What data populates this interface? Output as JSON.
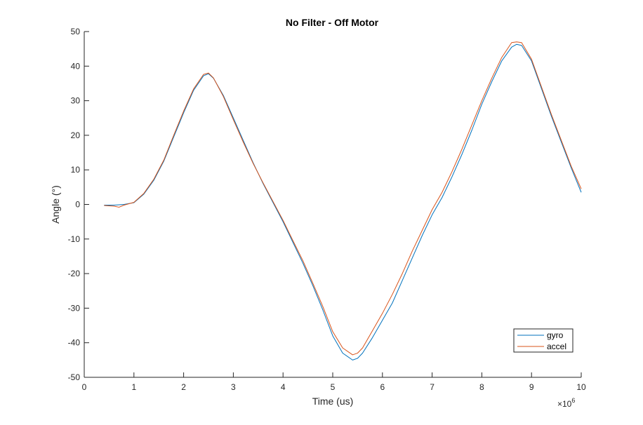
{
  "chart_data": {
    "type": "line",
    "title": "No Filter - Off Motor",
    "xlabel": "Time (us)",
    "ylabel": "Angle (°)",
    "xlim": [
      0,
      10
    ],
    "ylim": [
      -50,
      50
    ],
    "x_multiplier_label": "×10",
    "x_multiplier_exponent": "6",
    "xticks": [
      0,
      1,
      2,
      3,
      4,
      5,
      6,
      7,
      8,
      9,
      10
    ],
    "xtick_labels": [
      "0",
      "1",
      "2",
      "3",
      "4",
      "5",
      "6",
      "7",
      "8",
      "9",
      "10"
    ],
    "yticks": [
      -50,
      -40,
      -30,
      -20,
      -10,
      0,
      10,
      20,
      30,
      40,
      50
    ],
    "ytick_labels": [
      "-50",
      "-40",
      "-30",
      "-20",
      "-10",
      "0",
      "10",
      "20",
      "30",
      "40",
      "50"
    ],
    "grid": false,
    "legend_position": "bottom-right",
    "series": [
      {
        "name": "gyro",
        "color": "#0072BD",
        "x": [
          0.4,
          0.6,
          0.8,
          1.0,
          1.2,
          1.4,
          1.6,
          1.8,
          2.0,
          2.2,
          2.4,
          2.5,
          2.6,
          2.8,
          3.0,
          3.2,
          3.4,
          3.6,
          3.8,
          4.0,
          4.2,
          4.4,
          4.6,
          4.8,
          5.0,
          5.2,
          5.4,
          5.5,
          5.6,
          5.8,
          6.0,
          6.2,
          6.4,
          6.6,
          6.8,
          7.0,
          7.2,
          7.4,
          7.6,
          7.8,
          8.0,
          8.2,
          8.4,
          8.6,
          8.7,
          8.8,
          9.0,
          9.2,
          9.4,
          9.6,
          9.8,
          10.0
        ],
        "y": [
          -0.2,
          -0.2,
          0.0,
          0.5,
          3.0,
          7.0,
          12.5,
          19.5,
          26.5,
          33.0,
          37.2,
          37.8,
          36.5,
          31.5,
          25.0,
          18.5,
          12.0,
          6.0,
          0.5,
          -5.0,
          -11.0,
          -17.0,
          -23.5,
          -30.5,
          -38.0,
          -43.0,
          -45.0,
          -44.5,
          -43.0,
          -38.5,
          -33.5,
          -28.5,
          -22.0,
          -15.5,
          -9.0,
          -3.0,
          2.0,
          8.0,
          14.5,
          21.5,
          29.0,
          35.5,
          41.5,
          45.5,
          46.3,
          46.0,
          41.5,
          33.5,
          25.5,
          18.0,
          10.5,
          3.5
        ]
      },
      {
        "name": "accel",
        "color": "#D95319",
        "x": [
          0.4,
          0.6,
          0.7,
          0.8,
          1.0,
          1.2,
          1.4,
          1.6,
          1.8,
          2.0,
          2.2,
          2.4,
          2.5,
          2.6,
          2.8,
          3.0,
          3.2,
          3.4,
          3.6,
          3.8,
          4.0,
          4.2,
          4.4,
          4.6,
          4.8,
          5.0,
          5.2,
          5.4,
          5.5,
          5.6,
          5.8,
          6.0,
          6.2,
          6.4,
          6.6,
          6.8,
          7.0,
          7.2,
          7.4,
          7.6,
          7.8,
          8.0,
          8.2,
          8.4,
          8.6,
          8.7,
          8.8,
          9.0,
          9.2,
          9.4,
          9.6,
          9.8,
          10.0
        ],
        "y": [
          -0.3,
          -0.5,
          -0.8,
          -0.2,
          0.6,
          3.2,
          7.3,
          12.8,
          20.0,
          27.0,
          33.4,
          37.6,
          38.0,
          36.6,
          31.2,
          24.5,
          18.0,
          11.8,
          6.2,
          0.8,
          -4.6,
          -10.5,
          -16.3,
          -22.8,
          -29.5,
          -36.8,
          -41.5,
          -43.5,
          -43.0,
          -41.5,
          -36.5,
          -31.5,
          -26.0,
          -20.0,
          -13.5,
          -7.5,
          -1.5,
          3.5,
          9.5,
          16.0,
          23.0,
          30.0,
          36.5,
          42.5,
          46.8,
          47.0,
          46.8,
          42.0,
          34.0,
          26.0,
          18.5,
          11.0,
          4.5
        ]
      }
    ]
  }
}
